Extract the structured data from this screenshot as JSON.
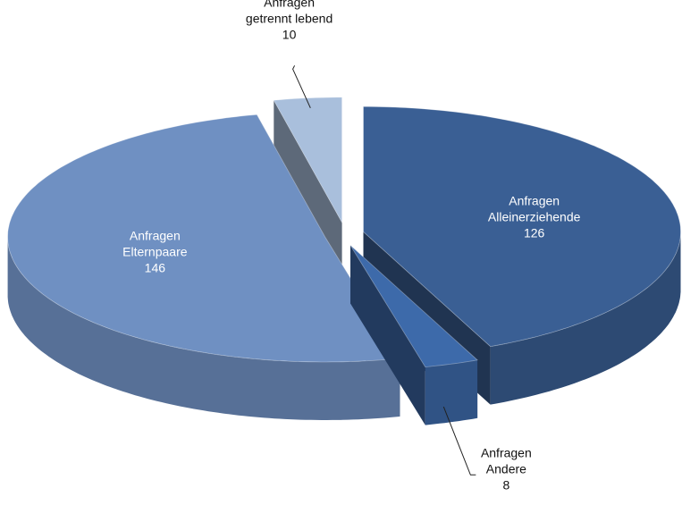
{
  "chart_data": {
    "type": "pie",
    "categories": [
      "Anfragen Alleinerziehende",
      "Anfragen Andere",
      "Anfragen Elternpaare",
      "Anfragen getrennt lebend"
    ],
    "values": [
      126,
      8,
      146,
      10
    ],
    "colors": [
      "#3a5f94",
      "#3d6aaa",
      "#6f90c2",
      "#a9bfdc"
    ]
  }
}
